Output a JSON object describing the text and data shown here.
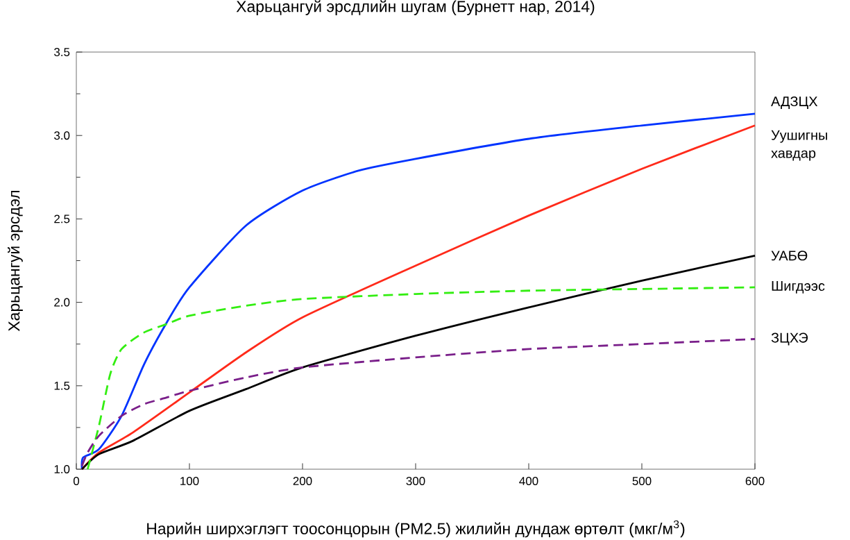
{
  "chart_data": {
    "type": "line",
    "title": "Харьцангуй эрсдлийн шугам (Бурнетт нар, 2014)",
    "xlabel": "Нарийн ширхэглэгт тоосонцорын (PM2.5) жилийн дундаж өртөлт (мкг/м$^{3}$)",
    "ylabel": "Харьцангуй эрсдэл",
    "xlim": [
      0,
      600
    ],
    "ylim": [
      1.0,
      3.5
    ],
    "xticks": [
      0,
      100,
      200,
      300,
      400,
      500,
      600
    ],
    "yticks": [
      {
        "value": 1.0,
        "label": "1.0"
      },
      {
        "value": 1.5,
        "label": "1.5"
      },
      {
        "value": 2.0,
        "label": "2.0"
      },
      {
        "value": 2.5,
        "label": "2.5"
      },
      {
        "value": 3.0,
        "label": "3.0"
      },
      {
        "value": 3.5,
        "label": "3.5"
      }
    ],
    "series": [
      {
        "name": "АДЗЦХ",
        "color": "#0033ff",
        "line_style": "solid",
        "x": [
          5,
          6,
          20,
          40,
          60,
          80,
          100,
          150,
          200,
          250,
          300,
          400,
          500,
          600
        ],
        "values": [
          1.0,
          1.07,
          1.12,
          1.32,
          1.63,
          1.88,
          2.09,
          2.46,
          2.67,
          2.79,
          2.86,
          2.98,
          3.06,
          3.13
        ]
      },
      {
        "name": "Уушигны хавдар",
        "color": "#ff2a1a",
        "line_style": "solid",
        "x": [
          5,
          20,
          50,
          100,
          150,
          200,
          300,
          400,
          500,
          600
        ],
        "values": [
          1.0,
          1.1,
          1.22,
          1.46,
          1.7,
          1.91,
          2.22,
          2.52,
          2.8,
          3.06
        ]
      },
      {
        "name": "УАБӨ",
        "color": "#000000",
        "line_style": "solid",
        "x": [
          5,
          20,
          50,
          100,
          150,
          200,
          300,
          400,
          500,
          600
        ],
        "values": [
          1.0,
          1.09,
          1.17,
          1.35,
          1.48,
          1.61,
          1.8,
          1.97,
          2.13,
          2.28
        ]
      },
      {
        "name": "Шигдээс",
        "color": "#33ee11",
        "line_style": "dashed",
        "x": [
          10,
          20,
          30,
          40,
          60,
          80,
          100,
          150,
          200,
          300,
          400,
          500,
          600
        ],
        "values": [
          1.0,
          1.26,
          1.57,
          1.72,
          1.82,
          1.87,
          1.92,
          1.98,
          2.02,
          2.05,
          2.07,
          2.08,
          2.09
        ]
      },
      {
        "name": "ЗЦХЭ",
        "color": "#7a1f8a",
        "line_style": "dashed",
        "x": [
          5,
          10,
          20,
          40,
          60,
          80,
          100,
          150,
          200,
          300,
          400,
          500,
          600
        ],
        "values": [
          1.02,
          1.1,
          1.2,
          1.32,
          1.39,
          1.43,
          1.47,
          1.55,
          1.61,
          1.67,
          1.72,
          1.75,
          1.78
        ]
      }
    ]
  }
}
